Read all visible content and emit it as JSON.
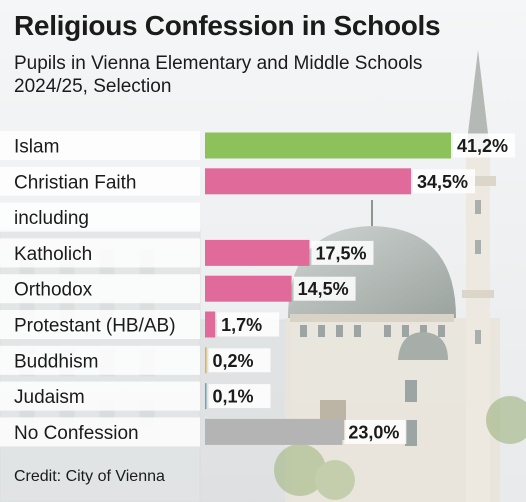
{
  "title": "Religious Confession in Schools",
  "subtitle": "Pupils in Vienna Elementary and Middle Schools 2024/25, Selection",
  "credit": "Credit: City of Vienna",
  "colors": {
    "islam": "#8dc159",
    "christian": "#e06b9b",
    "buddhism": "#e3b04a",
    "judaism": "#6fa3b8",
    "none": "#b4b4b4"
  },
  "chart_data": {
    "type": "bar",
    "orientation": "horizontal",
    "xlim": [
      0,
      41.2
    ],
    "grid": false,
    "rows": [
      {
        "label": "Islam",
        "value": 41.2,
        "value_label": "41,2%",
        "color": "islam"
      },
      {
        "label": "Christian Faith",
        "value": 34.5,
        "value_label": "34,5%",
        "color": "christian"
      },
      {
        "label": "including",
        "value": null,
        "value_label": "",
        "color": ""
      },
      {
        "label": "Katholich",
        "value": 17.5,
        "value_label": "17,5%",
        "color": "christian"
      },
      {
        "label": "Orthodox",
        "value": 14.5,
        "value_label": "14,5%",
        "color": "christian"
      },
      {
        "label": "Protestant (HB/AB)",
        "value": 1.7,
        "value_label": "1,7%",
        "color": "christian"
      },
      {
        "label": "Buddhism",
        "value": 0.2,
        "value_label": "0,2%",
        "color": "buddhism"
      },
      {
        "label": "Judaism",
        "value": 0.1,
        "value_label": "0,1%",
        "color": "judaism"
      },
      {
        "label": "No Confession",
        "value": 23.0,
        "value_label": "23,0%",
        "color": "none"
      }
    ]
  }
}
